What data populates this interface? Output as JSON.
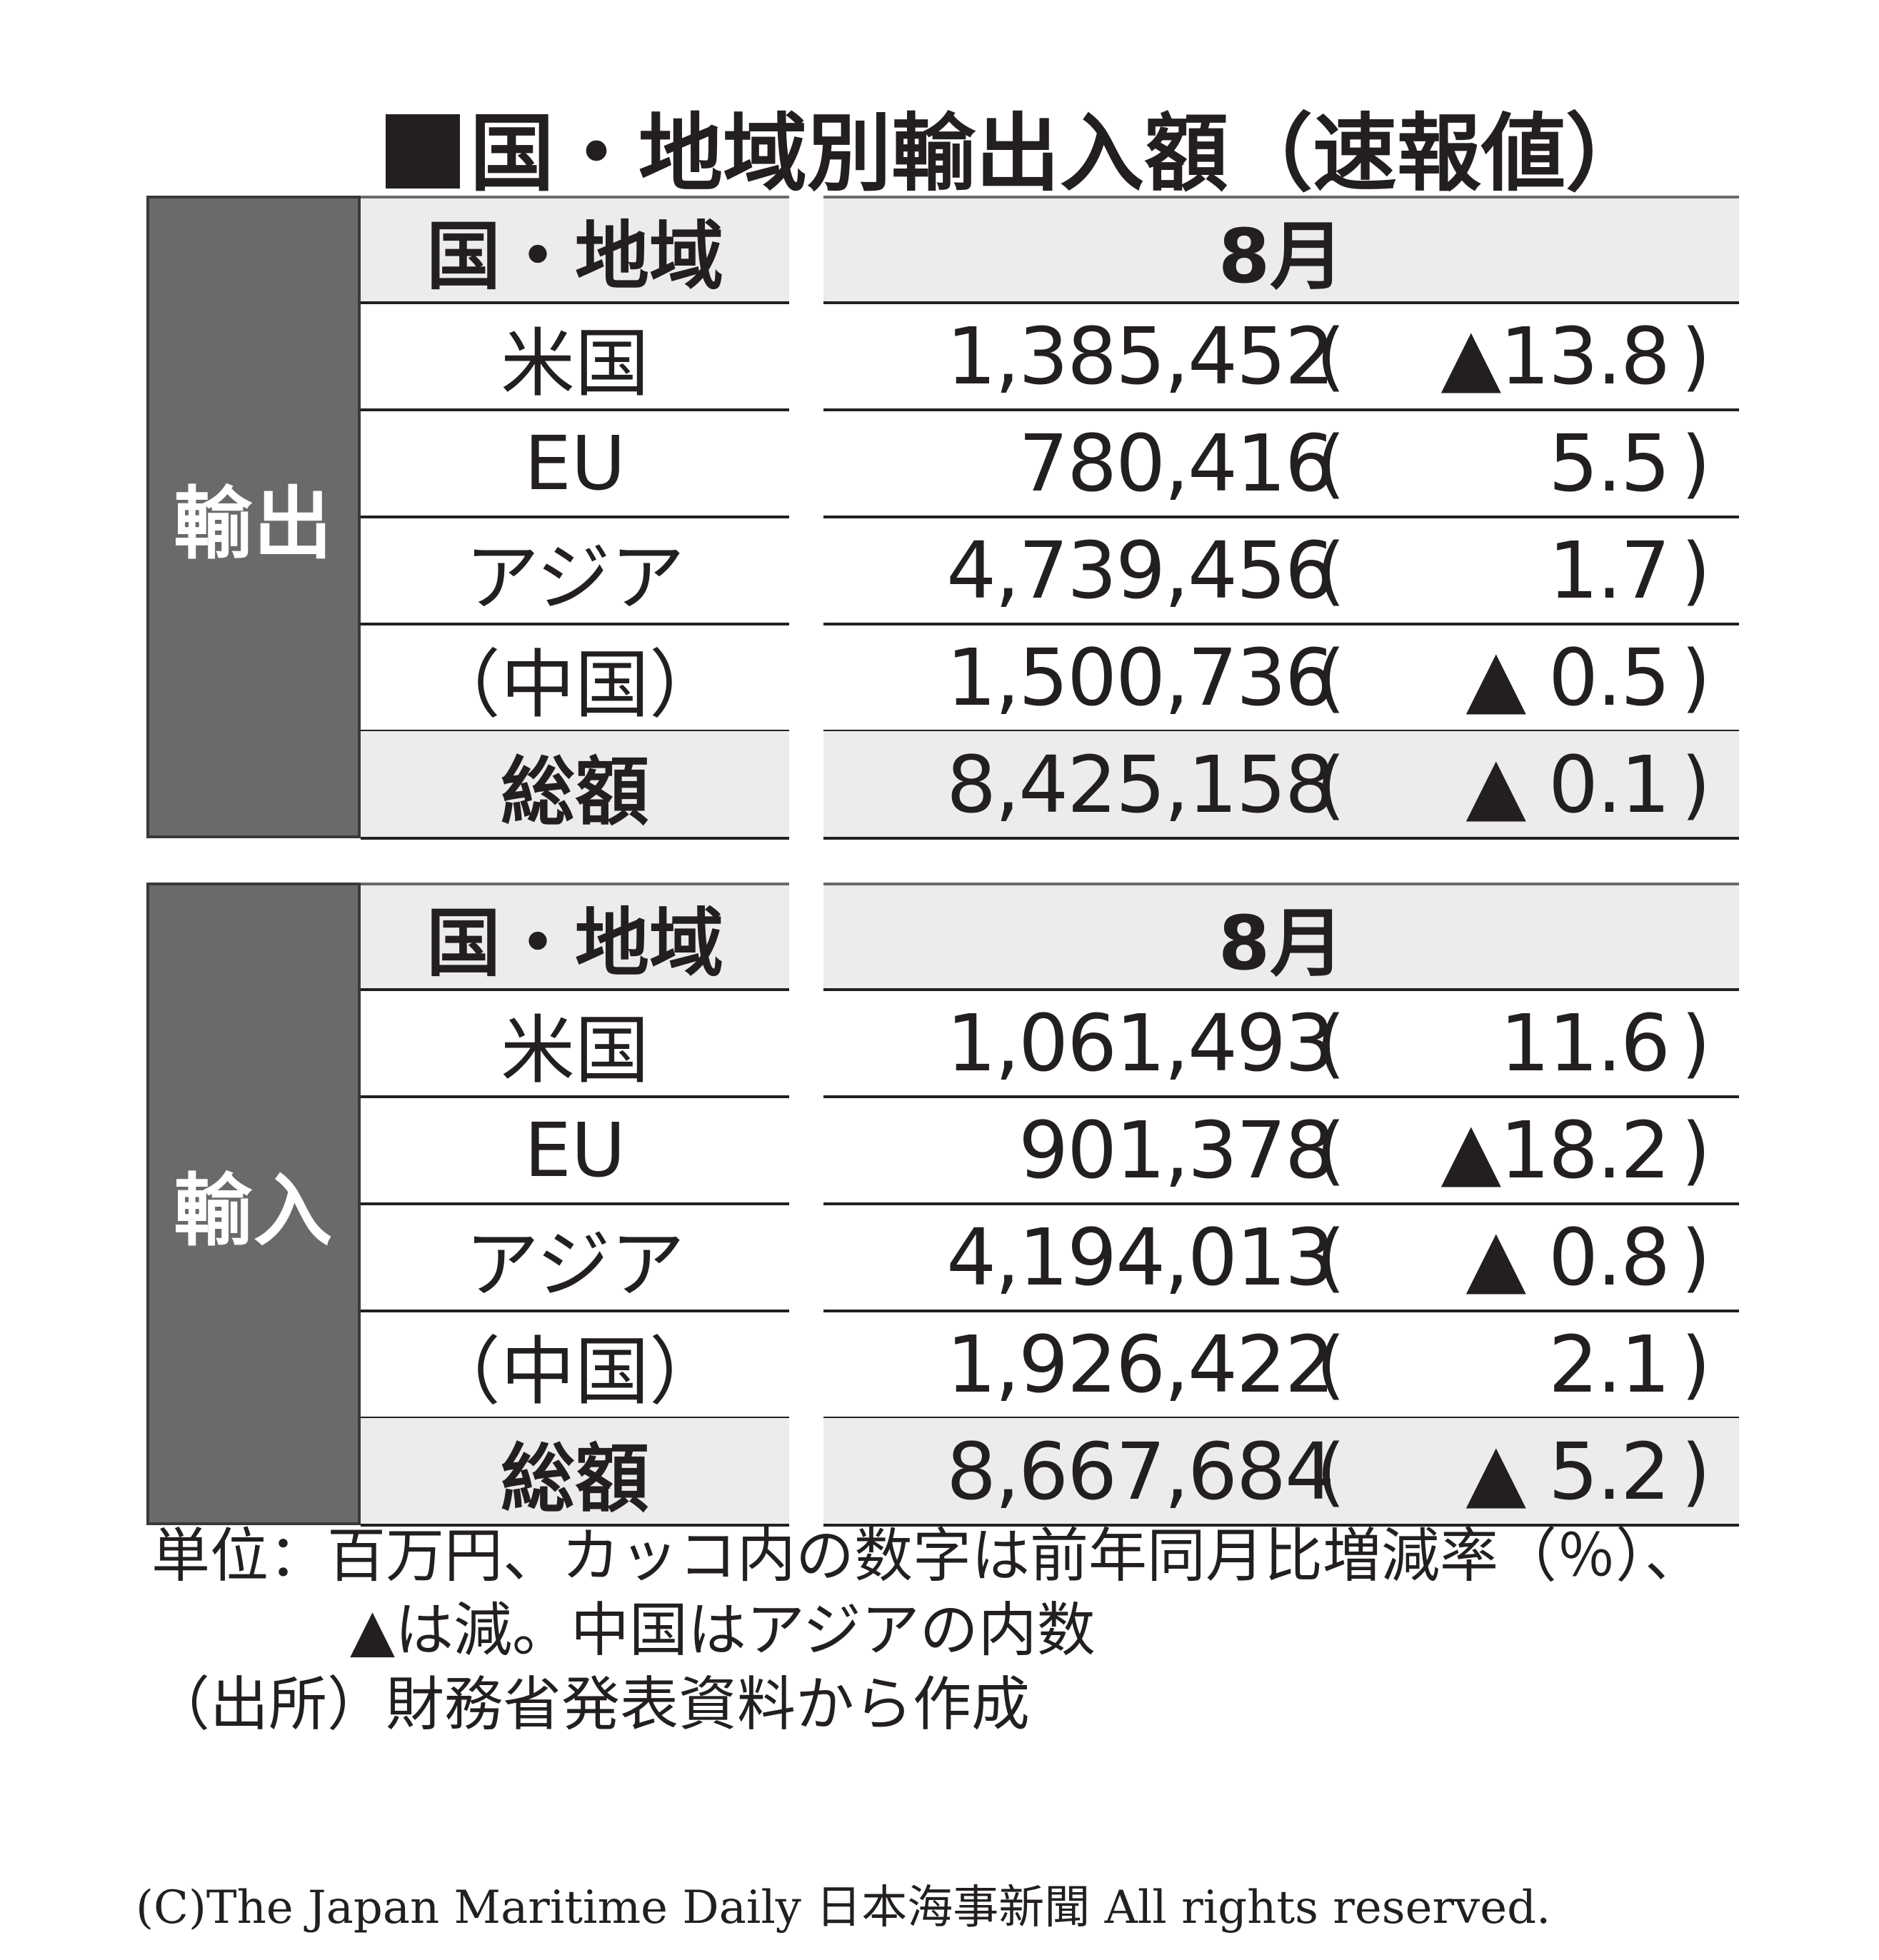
{
  "title": "国・地域別輸出入額（速報値）",
  "tables": [
    {
      "side_label": "輸出",
      "header": {
        "region": "国・地域",
        "month": "8月"
      },
      "rows": [
        {
          "region": "米国",
          "value": "1,385,452",
          "change": "▲13.8"
        },
        {
          "region": "EU",
          "value": "780,416",
          "change": "5.5"
        },
        {
          "region": "アジア",
          "value": "4,739,456",
          "change": "1.7"
        },
        {
          "region": "（中国）",
          "value": "1,500,736",
          "change": "▲ 0.5"
        },
        {
          "region": "総額",
          "value": "8,425,158",
          "change": "▲ 0.1"
        }
      ]
    },
    {
      "side_label": "輸入",
      "header": {
        "region": "国・地域",
        "month": "8月"
      },
      "rows": [
        {
          "region": "米国",
          "value": "1,061,493",
          "change": "11.6"
        },
        {
          "region": "EU",
          "value": "901,378",
          "change": "▲18.2"
        },
        {
          "region": "アジア",
          "value": "4,194,013",
          "change": "▲ 0.8"
        },
        {
          "region": "（中国）",
          "value": "1,926,422",
          "change": "2.1"
        },
        {
          "region": "総額",
          "value": "8,667,684",
          "change": "▲ 5.2"
        }
      ]
    }
  ],
  "paren_open": "(",
  "paren_close": ")",
  "notes": {
    "line1": "単位：百万円、カッコ内の数字は前年同月比増減率（％）、",
    "line2": "▲は減。中国はアジアの内数",
    "line3": "（出所）財務省発表資料から作成"
  },
  "copyright": "(C)The Japan Maritime Daily 日本海事新聞 All rights reserved."
}
